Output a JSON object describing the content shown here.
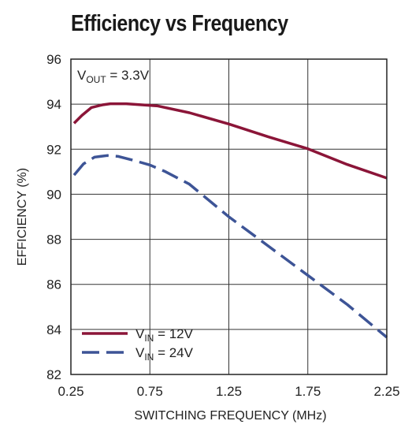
{
  "chart_data": {
    "type": "line",
    "title": "Efficiency vs Frequency",
    "xlabel": "SWITCHING FREQUENCY (MHz)",
    "ylabel": "EFFICIENCY (%)",
    "xlim": [
      0.25,
      2.25
    ],
    "ylim": [
      82,
      96
    ],
    "x_ticks": [
      0.25,
      0.75,
      1.25,
      1.75,
      2.25
    ],
    "x_tick_labels": [
      "0.25",
      "0.75",
      "1.25",
      "1.75",
      "2.25"
    ],
    "y_ticks": [
      82,
      84,
      86,
      88,
      90,
      92,
      94,
      96
    ],
    "y_tick_labels": [
      "82",
      "84",
      "86",
      "88",
      "90",
      "92",
      "94",
      "96"
    ],
    "grid": true,
    "legend_position": "bottom-left",
    "annotation": {
      "main": "V",
      "sub": "OUT",
      "rest": " = 3.3V"
    },
    "series": [
      {
        "name": "VIN = 12V",
        "label_main": "V",
        "label_sub": "IN",
        "label_rest": " = 12V",
        "color": "#8b1538",
        "dash": "solid",
        "x": [
          0.27,
          0.32,
          0.38,
          0.45,
          0.5,
          0.6,
          0.7,
          0.8,
          1.0,
          1.25,
          1.5,
          1.75,
          2.0,
          2.25
        ],
        "y": [
          93.15,
          93.5,
          93.85,
          93.97,
          94.02,
          94.02,
          93.97,
          93.92,
          93.62,
          93.12,
          92.55,
          92.02,
          91.32,
          90.72
        ]
      },
      {
        "name": "VIN = 24V",
        "label_main": "V",
        "label_sub": "IN",
        "label_rest": " = 24V",
        "color": "#3d5496",
        "dash": "dashed",
        "x": [
          0.27,
          0.33,
          0.4,
          0.48,
          0.55,
          0.65,
          0.75,
          0.85,
          1.0,
          1.25,
          1.5,
          1.75,
          2.0,
          2.25
        ],
        "y": [
          90.85,
          91.35,
          91.65,
          91.72,
          91.68,
          91.5,
          91.3,
          91.0,
          90.45,
          89.0,
          87.7,
          86.4,
          85.1,
          83.65
        ]
      }
    ]
  }
}
